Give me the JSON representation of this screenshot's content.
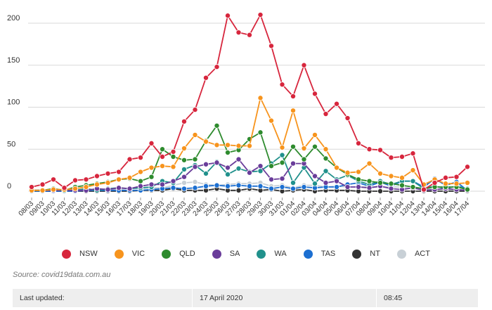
{
  "chart_data": {
    "type": "line",
    "title": "",
    "xlabel": "",
    "ylabel": "",
    "ylim": [
      0,
      220
    ],
    "yticks": [
      0,
      50,
      100,
      150,
      200
    ],
    "grid": true,
    "legend_position": "bottom",
    "categories": [
      "08/03",
      "09/03",
      "10/03",
      "11/03",
      "12/03",
      "13/03",
      "14/03",
      "15/03",
      "16/03",
      "17/03",
      "18/03",
      "19/03",
      "20/03",
      "21/03",
      "22/03",
      "23/03",
      "24/03",
      "25/03",
      "26/03",
      "27/03",
      "28/03",
      "29/03",
      "30/03",
      "31/03",
      "01/04",
      "02/04",
      "03/04",
      "04/04",
      "05/04",
      "06/04",
      "07/04",
      "08/04",
      "09/04",
      "10/04",
      "11/04",
      "12/04",
      "13/04",
      "14/04",
      "15/04",
      "16/04",
      "17/04"
    ],
    "series": [
      {
        "name": "NSW",
        "color": "#d7263d",
        "values": [
          5,
          8,
          14,
          4,
          13,
          14,
          18,
          21,
          23,
          38,
          40,
          57,
          41,
          47,
          83,
          97,
          135,
          148,
          209,
          189,
          186,
          210,
          173,
          127,
          113,
          150,
          116,
          92,
          104,
          87,
          57,
          50,
          49,
          40,
          41,
          45,
          2,
          10,
          16,
          17,
          29
        ]
      },
      {
        "name": "VIC",
        "color": "#f7941d",
        "values": [
          1,
          1,
          2,
          2,
          3,
          5,
          8,
          10,
          14,
          16,
          23,
          28,
          30,
          29,
          51,
          67,
          59,
          55,
          55,
          54,
          54,
          111,
          84,
          52,
          96,
          51,
          67,
          50,
          28,
          22,
          23,
          33,
          21,
          18,
          16,
          25,
          8,
          14,
          9,
          9,
          10
        ]
      },
      {
        "name": "QLD",
        "color": "#2e8b2e",
        "values": [
          1,
          1,
          3,
          1,
          5,
          7,
          9,
          11,
          14,
          15,
          12,
          17,
          50,
          41,
          37,
          38,
          60,
          78,
          46,
          49,
          62,
          70,
          30,
          34,
          53,
          38,
          53,
          39,
          28,
          20,
          14,
          12,
          10,
          9,
          7,
          5,
          3,
          5,
          5,
          5,
          2
        ]
      },
      {
        "name": "SA",
        "color": "#6a3d9a",
        "values": [
          1,
          1,
          1,
          1,
          1,
          1,
          3,
          2,
          4,
          3,
          6,
          8,
          8,
          12,
          17,
          29,
          32,
          34,
          28,
          38,
          22,
          30,
          14,
          15,
          33,
          33,
          18,
          10,
          12,
          5,
          5,
          4,
          6,
          3,
          2,
          4,
          1,
          2,
          3,
          2,
          1
        ]
      },
      {
        "name": "WA",
        "color": "#21918c",
        "values": [
          1,
          1,
          1,
          1,
          1,
          3,
          1,
          3,
          4,
          3,
          4,
          5,
          12,
          10,
          26,
          31,
          21,
          35,
          20,
          27,
          23,
          24,
          33,
          43,
          10,
          28,
          9,
          24,
          14,
          19,
          12,
          8,
          12,
          8,
          12,
          12,
          3,
          6,
          3,
          6,
          3
        ]
      },
      {
        "name": "TAS",
        "color": "#1c6fd1",
        "values": [
          0,
          0,
          0,
          0,
          0,
          1,
          1,
          1,
          1,
          1,
          1,
          2,
          3,
          4,
          3,
          4,
          6,
          7,
          6,
          7,
          6,
          6,
          3,
          5,
          3,
          5,
          4,
          5,
          5,
          8,
          10,
          6,
          11,
          6,
          12,
          12,
          5,
          15,
          7,
          11,
          1
        ]
      },
      {
        "name": "NT",
        "color": "#333333",
        "values": [
          0,
          0,
          0,
          0,
          0,
          0,
          0,
          0,
          0,
          0,
          1,
          1,
          1,
          3,
          1,
          1,
          1,
          3,
          1,
          1,
          3,
          1,
          2,
          0,
          1,
          2,
          0,
          1,
          1,
          1,
          0,
          0,
          0,
          0,
          0,
          0,
          0,
          0,
          0,
          0,
          0
        ]
      },
      {
        "name": "ACT",
        "color": "#c8d0d6",
        "values": [
          0,
          0,
          0,
          0,
          1,
          1,
          0,
          3,
          2,
          4,
          3,
          4,
          4,
          7,
          10,
          11,
          8,
          7,
          8,
          9,
          9,
          10,
          6,
          7,
          4,
          7,
          7,
          5,
          6,
          5,
          5,
          5,
          5,
          5,
          5,
          3,
          3,
          2,
          2,
          1,
          0
        ]
      }
    ]
  },
  "source": "Source: covid19data.com.au",
  "footer": {
    "label": "Last updated:",
    "date": "17 April 2020",
    "time": "08:45"
  }
}
